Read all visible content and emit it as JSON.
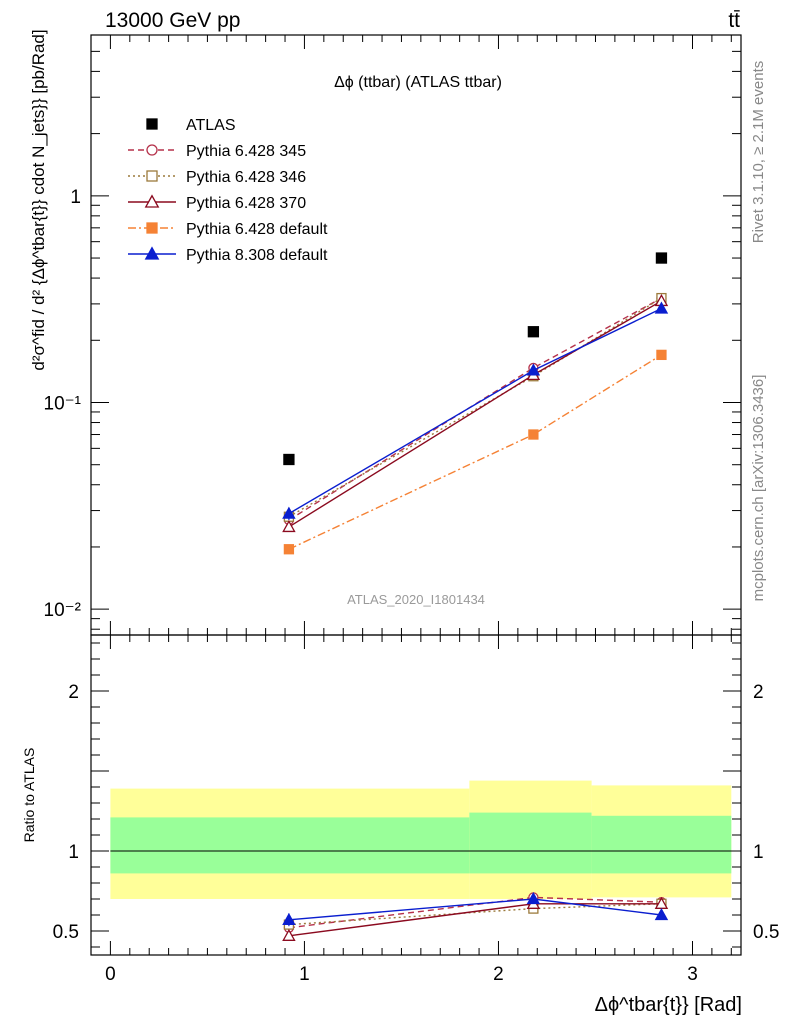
{
  "header": {
    "left": "13000 GeV pp",
    "right": "tt̄"
  },
  "side_labels": {
    "rivet": "Rivet 3.1.10, ≥ 2.1M events",
    "mcplots": "mcplots.cern.ch [arXiv:1306.3436]"
  },
  "colors": {
    "atlas": "#000000",
    "py345": "#b5314a",
    "py346": "#9c7a3c",
    "py370": "#8b0a1f",
    "py_default": "#f58235",
    "py8": "#0a1ecf",
    "band_outer": "#ffff99",
    "band_inner": "#99ff99"
  },
  "chart_data": [
    {
      "type": "line",
      "panel": "main",
      "title": "Δϕ (ttbar) (ATLAS ttbar)",
      "watermark": "ATLAS_2020_I1801434",
      "ylabel": "d²σ^fid / d² {Δϕ^tbar{t}} cdot N_jets}} [pb/Rad]",
      "yscale": "log",
      "ylim": [
        0.0075,
        6.0
      ],
      "xlim": [
        -0.1,
        3.25
      ],
      "y_ticks": [
        {
          "value": 0.01,
          "label": "10⁻²"
        },
        {
          "value": 0.1,
          "label": "10⁻¹"
        },
        {
          "value": 1,
          "label": "1"
        }
      ],
      "legend_position": "top-left",
      "series": [
        {
          "name": "ATLAS",
          "style": "atlas",
          "x": [
            0.92,
            2.18,
            2.84
          ],
          "y": [
            0.053,
            0.22,
            0.5
          ],
          "yerr": [
            0.0,
            0.0,
            0.0
          ]
        },
        {
          "name": "Pythia 6.428 345",
          "style": "py345",
          "x": [
            0.92,
            2.18,
            2.84
          ],
          "y": [
            0.027,
            0.147,
            0.32
          ],
          "yerr": [
            0.001,
            0.004,
            0.008
          ]
        },
        {
          "name": "Pythia 6.428 346",
          "style": "py346",
          "x": [
            0.92,
            2.18,
            2.84
          ],
          "y": [
            0.028,
            0.134,
            0.32
          ],
          "yerr": [
            0.001,
            0.004,
            0.008
          ]
        },
        {
          "name": "Pythia 6.428 370",
          "style": "py370",
          "x": [
            0.92,
            2.18,
            2.84
          ],
          "y": [
            0.025,
            0.136,
            0.31
          ],
          "yerr": [
            0.001,
            0.004,
            0.008
          ]
        },
        {
          "name": "Pythia 6.428 default",
          "style": "py_default",
          "x": [
            0.92,
            2.18,
            2.84
          ],
          "y": [
            0.0195,
            0.07,
            0.17
          ],
          "yerr": [
            0.001,
            0.003,
            0.004
          ]
        },
        {
          "name": "Pythia 8.308 default",
          "style": "py8",
          "x": [
            0.92,
            2.18,
            2.84
          ],
          "y": [
            0.029,
            0.143,
            0.285
          ],
          "yerr": [
            0.002,
            0.004,
            0.008
          ]
        }
      ]
    },
    {
      "type": "line",
      "panel": "ratio",
      "ylabel": "Ratio to ATLAS",
      "xlabel": "Δϕ^tbar{t}} [Rad]",
      "ylim": [
        0.35,
        2.35
      ],
      "xlim": [
        -0.1,
        3.25
      ],
      "y_ticks": [
        {
          "value": 0.5,
          "label": "0.5"
        },
        {
          "value": 1,
          "label": "1"
        },
        {
          "value": 2,
          "label": "2"
        }
      ],
      "x_ticks": [
        {
          "value": 0,
          "label": "0"
        },
        {
          "value": 1,
          "label": "1"
        },
        {
          "value": 2,
          "label": "2"
        },
        {
          "value": 3,
          "label": "3"
        }
      ],
      "bands": [
        {
          "x0": 0.0,
          "x1": 1.85,
          "outer": [
            0.7,
            1.39
          ],
          "inner": [
            0.86,
            1.21
          ]
        },
        {
          "x0": 1.85,
          "x1": 2.48,
          "outer": [
            0.7,
            1.44
          ],
          "inner": [
            0.86,
            1.24
          ]
        },
        {
          "x0": 2.48,
          "x1": 3.2,
          "outer": [
            0.71,
            1.41
          ],
          "inner": [
            0.86,
            1.22
          ]
        }
      ],
      "series": [
        {
          "name": "Pythia 6.428 345",
          "style": "py345",
          "x": [
            0.92,
            2.18,
            2.84
          ],
          "y": [
            0.52,
            0.71,
            0.68
          ],
          "yerr": [
            0.02,
            0.02,
            0.02
          ]
        },
        {
          "name": "Pythia 6.428 346",
          "style": "py346",
          "x": [
            0.92,
            2.18,
            2.84
          ],
          "y": [
            0.54,
            0.64,
            0.67
          ],
          "yerr": [
            0.02,
            0.02,
            0.02
          ]
        },
        {
          "name": "Pythia 6.428 370",
          "style": "py370",
          "x": [
            0.92,
            2.18,
            2.84
          ],
          "y": [
            0.47,
            0.67,
            0.67
          ],
          "yerr": [
            0.03,
            0.02,
            0.02
          ]
        },
        {
          "name": "Pythia 8.308 default",
          "style": "py8",
          "x": [
            0.92,
            2.18,
            2.84
          ],
          "y": [
            0.57,
            0.7,
            0.6
          ],
          "yerr": [
            0.04,
            0.02,
            0.02
          ]
        }
      ]
    }
  ]
}
